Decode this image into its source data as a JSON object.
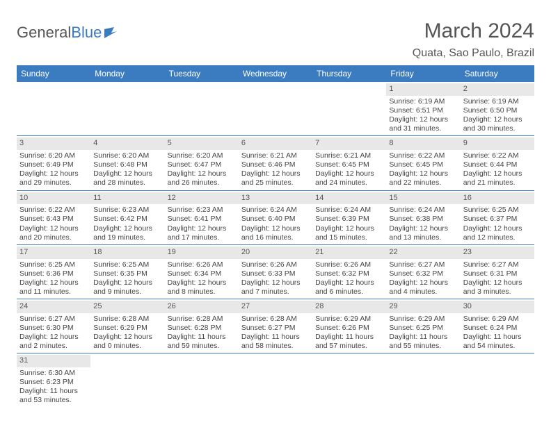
{
  "brand": {
    "word1": "General",
    "word2": "Blue"
  },
  "title": "March 2024",
  "location": "Quata, Sao Paulo, Brazil",
  "colors": {
    "header_bg": "#3b7bbf",
    "header_text": "#ffffff",
    "daynum_bg": "#e8e8e8",
    "text": "#444444",
    "rule": "#3b7bbf",
    "page_bg": "#ffffff"
  },
  "typography": {
    "title_fontsize": 30,
    "location_fontsize": 16,
    "dayhdr_fontsize": 12,
    "cell_fontsize": 10.5
  },
  "day_headers": [
    "Sunday",
    "Monday",
    "Tuesday",
    "Wednesday",
    "Thursday",
    "Friday",
    "Saturday"
  ],
  "weeks": [
    [
      {
        "n": "",
        "sr": "",
        "ss": "",
        "d1": "",
        "d2": ""
      },
      {
        "n": "",
        "sr": "",
        "ss": "",
        "d1": "",
        "d2": ""
      },
      {
        "n": "",
        "sr": "",
        "ss": "",
        "d1": "",
        "d2": ""
      },
      {
        "n": "",
        "sr": "",
        "ss": "",
        "d1": "",
        "d2": ""
      },
      {
        "n": "",
        "sr": "",
        "ss": "",
        "d1": "",
        "d2": ""
      },
      {
        "n": "1",
        "sr": "Sunrise: 6:19 AM",
        "ss": "Sunset: 6:51 PM",
        "d1": "Daylight: 12 hours",
        "d2": "and 31 minutes."
      },
      {
        "n": "2",
        "sr": "Sunrise: 6:19 AM",
        "ss": "Sunset: 6:50 PM",
        "d1": "Daylight: 12 hours",
        "d2": "and 30 minutes."
      }
    ],
    [
      {
        "n": "3",
        "sr": "Sunrise: 6:20 AM",
        "ss": "Sunset: 6:49 PM",
        "d1": "Daylight: 12 hours",
        "d2": "and 29 minutes."
      },
      {
        "n": "4",
        "sr": "Sunrise: 6:20 AM",
        "ss": "Sunset: 6:48 PM",
        "d1": "Daylight: 12 hours",
        "d2": "and 28 minutes."
      },
      {
        "n": "5",
        "sr": "Sunrise: 6:20 AM",
        "ss": "Sunset: 6:47 PM",
        "d1": "Daylight: 12 hours",
        "d2": "and 26 minutes."
      },
      {
        "n": "6",
        "sr": "Sunrise: 6:21 AM",
        "ss": "Sunset: 6:46 PM",
        "d1": "Daylight: 12 hours",
        "d2": "and 25 minutes."
      },
      {
        "n": "7",
        "sr": "Sunrise: 6:21 AM",
        "ss": "Sunset: 6:45 PM",
        "d1": "Daylight: 12 hours",
        "d2": "and 24 minutes."
      },
      {
        "n": "8",
        "sr": "Sunrise: 6:22 AM",
        "ss": "Sunset: 6:45 PM",
        "d1": "Daylight: 12 hours",
        "d2": "and 22 minutes."
      },
      {
        "n": "9",
        "sr": "Sunrise: 6:22 AM",
        "ss": "Sunset: 6:44 PM",
        "d1": "Daylight: 12 hours",
        "d2": "and 21 minutes."
      }
    ],
    [
      {
        "n": "10",
        "sr": "Sunrise: 6:22 AM",
        "ss": "Sunset: 6:43 PM",
        "d1": "Daylight: 12 hours",
        "d2": "and 20 minutes."
      },
      {
        "n": "11",
        "sr": "Sunrise: 6:23 AM",
        "ss": "Sunset: 6:42 PM",
        "d1": "Daylight: 12 hours",
        "d2": "and 19 minutes."
      },
      {
        "n": "12",
        "sr": "Sunrise: 6:23 AM",
        "ss": "Sunset: 6:41 PM",
        "d1": "Daylight: 12 hours",
        "d2": "and 17 minutes."
      },
      {
        "n": "13",
        "sr": "Sunrise: 6:24 AM",
        "ss": "Sunset: 6:40 PM",
        "d1": "Daylight: 12 hours",
        "d2": "and 16 minutes."
      },
      {
        "n": "14",
        "sr": "Sunrise: 6:24 AM",
        "ss": "Sunset: 6:39 PM",
        "d1": "Daylight: 12 hours",
        "d2": "and 15 minutes."
      },
      {
        "n": "15",
        "sr": "Sunrise: 6:24 AM",
        "ss": "Sunset: 6:38 PM",
        "d1": "Daylight: 12 hours",
        "d2": "and 13 minutes."
      },
      {
        "n": "16",
        "sr": "Sunrise: 6:25 AM",
        "ss": "Sunset: 6:37 PM",
        "d1": "Daylight: 12 hours",
        "d2": "and 12 minutes."
      }
    ],
    [
      {
        "n": "17",
        "sr": "Sunrise: 6:25 AM",
        "ss": "Sunset: 6:36 PM",
        "d1": "Daylight: 12 hours",
        "d2": "and 11 minutes."
      },
      {
        "n": "18",
        "sr": "Sunrise: 6:25 AM",
        "ss": "Sunset: 6:35 PM",
        "d1": "Daylight: 12 hours",
        "d2": "and 9 minutes."
      },
      {
        "n": "19",
        "sr": "Sunrise: 6:26 AM",
        "ss": "Sunset: 6:34 PM",
        "d1": "Daylight: 12 hours",
        "d2": "and 8 minutes."
      },
      {
        "n": "20",
        "sr": "Sunrise: 6:26 AM",
        "ss": "Sunset: 6:33 PM",
        "d1": "Daylight: 12 hours",
        "d2": "and 7 minutes."
      },
      {
        "n": "21",
        "sr": "Sunrise: 6:26 AM",
        "ss": "Sunset: 6:32 PM",
        "d1": "Daylight: 12 hours",
        "d2": "and 6 minutes."
      },
      {
        "n": "22",
        "sr": "Sunrise: 6:27 AM",
        "ss": "Sunset: 6:32 PM",
        "d1": "Daylight: 12 hours",
        "d2": "and 4 minutes."
      },
      {
        "n": "23",
        "sr": "Sunrise: 6:27 AM",
        "ss": "Sunset: 6:31 PM",
        "d1": "Daylight: 12 hours",
        "d2": "and 3 minutes."
      }
    ],
    [
      {
        "n": "24",
        "sr": "Sunrise: 6:27 AM",
        "ss": "Sunset: 6:30 PM",
        "d1": "Daylight: 12 hours",
        "d2": "and 2 minutes."
      },
      {
        "n": "25",
        "sr": "Sunrise: 6:28 AM",
        "ss": "Sunset: 6:29 PM",
        "d1": "Daylight: 12 hours",
        "d2": "and 0 minutes."
      },
      {
        "n": "26",
        "sr": "Sunrise: 6:28 AM",
        "ss": "Sunset: 6:28 PM",
        "d1": "Daylight: 11 hours",
        "d2": "and 59 minutes."
      },
      {
        "n": "27",
        "sr": "Sunrise: 6:28 AM",
        "ss": "Sunset: 6:27 PM",
        "d1": "Daylight: 11 hours",
        "d2": "and 58 minutes."
      },
      {
        "n": "28",
        "sr": "Sunrise: 6:29 AM",
        "ss": "Sunset: 6:26 PM",
        "d1": "Daylight: 11 hours",
        "d2": "and 57 minutes."
      },
      {
        "n": "29",
        "sr": "Sunrise: 6:29 AM",
        "ss": "Sunset: 6:25 PM",
        "d1": "Daylight: 11 hours",
        "d2": "and 55 minutes."
      },
      {
        "n": "30",
        "sr": "Sunrise: 6:29 AM",
        "ss": "Sunset: 6:24 PM",
        "d1": "Daylight: 11 hours",
        "d2": "and 54 minutes."
      }
    ],
    [
      {
        "n": "31",
        "sr": "Sunrise: 6:30 AM",
        "ss": "Sunset: 6:23 PM",
        "d1": "Daylight: 11 hours",
        "d2": "and 53 minutes."
      },
      {
        "n": "",
        "sr": "",
        "ss": "",
        "d1": "",
        "d2": ""
      },
      {
        "n": "",
        "sr": "",
        "ss": "",
        "d1": "",
        "d2": ""
      },
      {
        "n": "",
        "sr": "",
        "ss": "",
        "d1": "",
        "d2": ""
      },
      {
        "n": "",
        "sr": "",
        "ss": "",
        "d1": "",
        "d2": ""
      },
      {
        "n": "",
        "sr": "",
        "ss": "",
        "d1": "",
        "d2": ""
      },
      {
        "n": "",
        "sr": "",
        "ss": "",
        "d1": "",
        "d2": ""
      }
    ]
  ]
}
